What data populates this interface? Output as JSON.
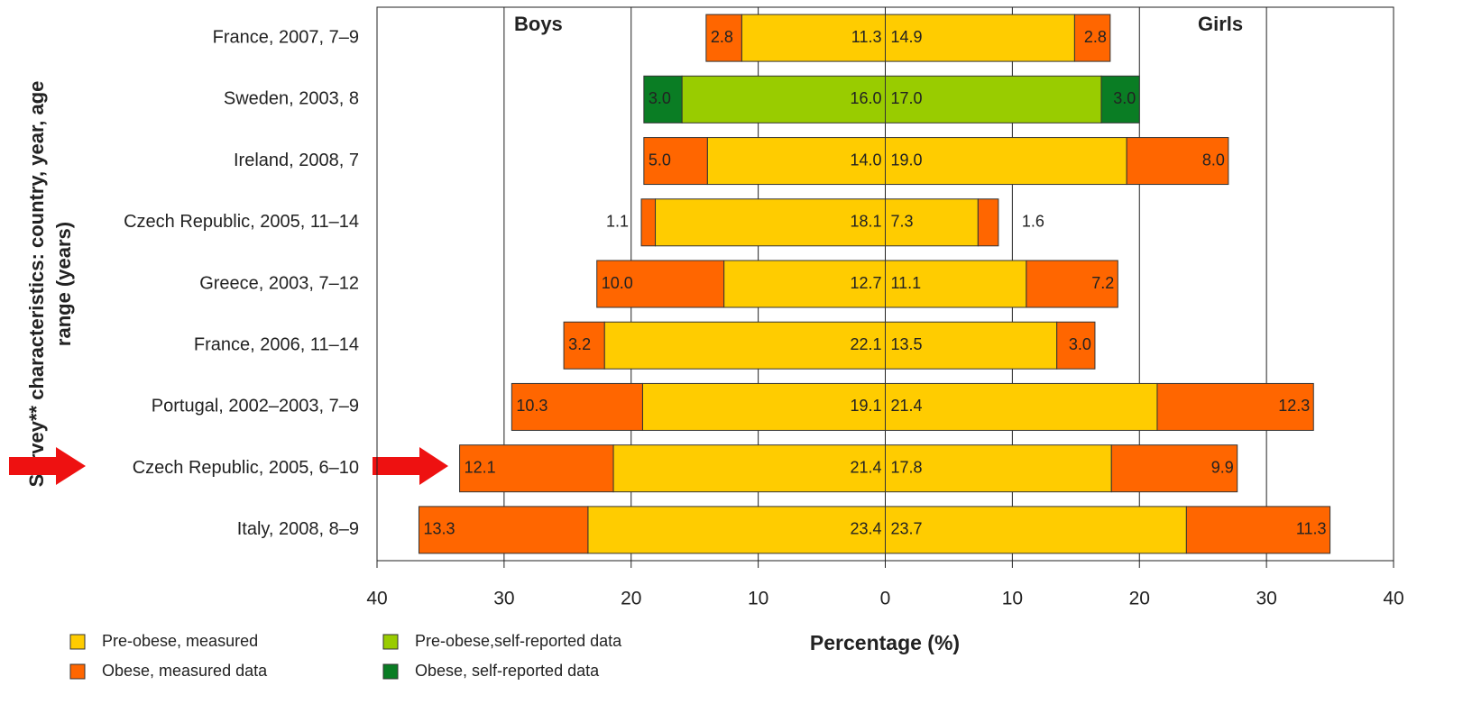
{
  "chart_data": {
    "type": "pyramid",
    "ylabel": [
      "Survey** characteristics: country, year, age",
      "range (years)"
    ],
    "xlabel": "Percentage (%)",
    "groups": {
      "boys": "Boys",
      "girls": "Girls"
    },
    "categories": [
      "France, 2007, 7–9",
      "Sweden, 2003, 8",
      "Ireland, 2008, 7",
      "Czech Republic, 2005, 11–14",
      "Greece, 2003, 7–12",
      "France, 2006, 11–14",
      "Portugal, 2002–2003, 7–9",
      "Czech Republic, 2005, 6–10",
      "Italy, 2008, 8–9"
    ],
    "series": [
      {
        "name": "Pre-obese, measured",
        "color": "#ffcc00",
        "values": {
          "boys": [
            11.3,
            null,
            14,
            18.1,
            12.7,
            22.1,
            19.1,
            21.4,
            23.4
          ],
          "girls": [
            14.9,
            null,
            19,
            7.3,
            11.1,
            13.5,
            21.4,
            17.8,
            23.7
          ]
        },
        "value_labels": {
          "boys": [
            "11.3",
            null,
            "14.0",
            "18.1",
            "12.7",
            "22.1",
            "19.1",
            "21.4",
            "23.4"
          ],
          "girls": [
            "14.9",
            null,
            "19.0",
            "7.3",
            "11.1",
            "13.5",
            "21.4",
            "17.8",
            "23.7"
          ]
        }
      },
      {
        "name": "Obese, measured data",
        "color": "#ff6600",
        "values": {
          "boys": [
            2.8,
            null,
            5,
            1.1,
            10,
            3.2,
            10.3,
            12.1,
            13.3
          ],
          "girls": [
            2.8,
            null,
            8,
            1.6,
            7.2,
            3,
            12.3,
            9.9,
            11.3
          ]
        },
        "value_labels": {
          "boys": [
            "2.8",
            null,
            "5.0",
            "1.1",
            "10.0",
            "3.2",
            "10.3",
            "12.1",
            "13.3"
          ],
          "girls": [
            "2.8",
            null,
            "8.0",
            "1.6",
            "7.2",
            "3.0",
            "12.3",
            "9.9",
            "11.3"
          ]
        }
      },
      {
        "name": "Pre-obese,self-reported data",
        "color": "#99cc00",
        "values": {
          "boys": [
            null,
            16,
            null,
            null,
            null,
            null,
            null,
            null,
            null
          ],
          "girls": [
            null,
            17,
            null,
            null,
            null,
            null,
            null,
            null,
            null
          ]
        },
        "value_labels": {
          "boys": [
            null,
            "16.0",
            null,
            null,
            null,
            null,
            null,
            null,
            null
          ],
          "girls": [
            null,
            "17.0",
            null,
            null,
            null,
            null,
            null,
            null,
            null
          ]
        }
      },
      {
        "name": "Obese, self-reported  data",
        "color": "#0a7d24",
        "values": {
          "boys": [
            null,
            3,
            null,
            null,
            null,
            null,
            null,
            null,
            null
          ],
          "girls": [
            null,
            3,
            null,
            null,
            null,
            null,
            null,
            null,
            null
          ]
        },
        "value_labels": {
          "boys": [
            null,
            "3.0",
            null,
            null,
            null,
            null,
            null,
            null,
            null
          ],
          "girls": [
            null,
            "3.0",
            null,
            null,
            null,
            null,
            null,
            null,
            null
          ]
        }
      }
    ],
    "xlim": [
      -40,
      40
    ],
    "xticks": [
      {
        "value": -40,
        "label": "40"
      },
      {
        "value": -30,
        "label": "30"
      },
      {
        "value": -20,
        "label": "20"
      },
      {
        "value": -10,
        "label": "10"
      },
      0,
      10,
      20,
      30,
      40
    ],
    "grid": true
  }
}
